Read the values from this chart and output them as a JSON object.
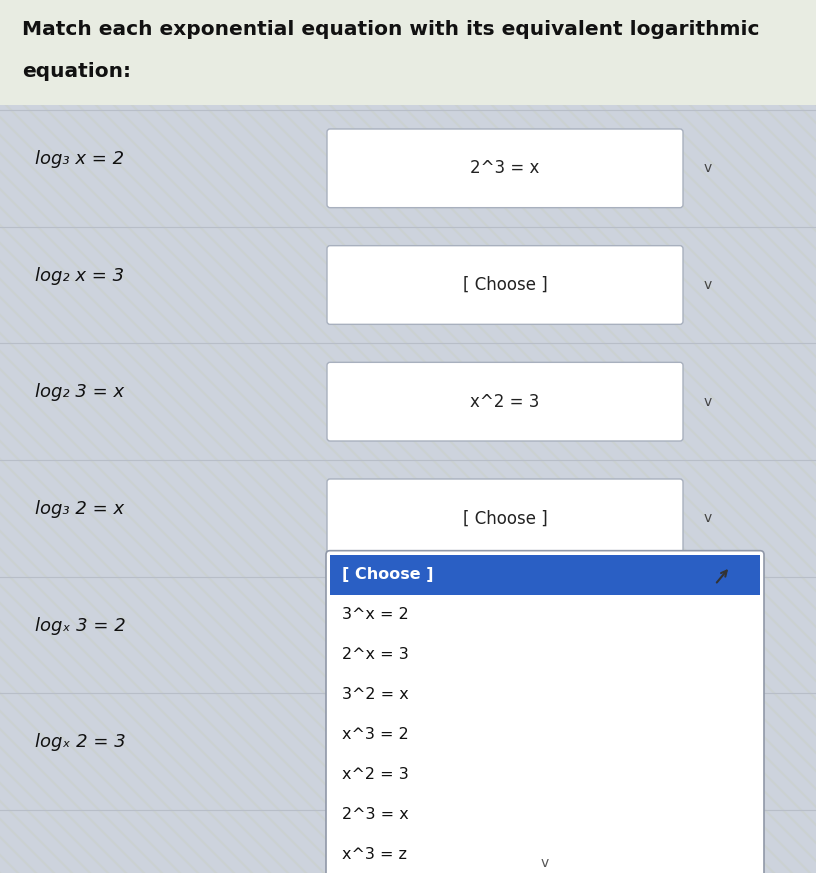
{
  "title_line1": "Match each exponential equation with its equivalent logarithmic",
  "title_line2": "equation:",
  "title_fontsize": 14.5,
  "bg_color": "#cdd3dd",
  "row_bg": "#d4dbe6",
  "left_labels": [
    "log₃ x = 2",
    "log₂ x = 3",
    "log₂ 3 = x",
    "log₃ 2 = x",
    "logₓ 3 = 2",
    "logₓ 2 = 3"
  ],
  "box_texts": [
    "2^3 = x",
    "[ Choose ]",
    "x^2 = 3",
    "[ Choose ]"
  ],
  "dropdown_items": [
    "[ Choose ]",
    "3^x = 2",
    "2^x = 3",
    "3^2 = x",
    "x^3 = 2",
    "x^2 = 3",
    "2^3 = x",
    "x^3 = z"
  ],
  "dropdown_highlight_idx": 0,
  "figw": 8.16,
  "figh": 8.73,
  "dpi": 100
}
